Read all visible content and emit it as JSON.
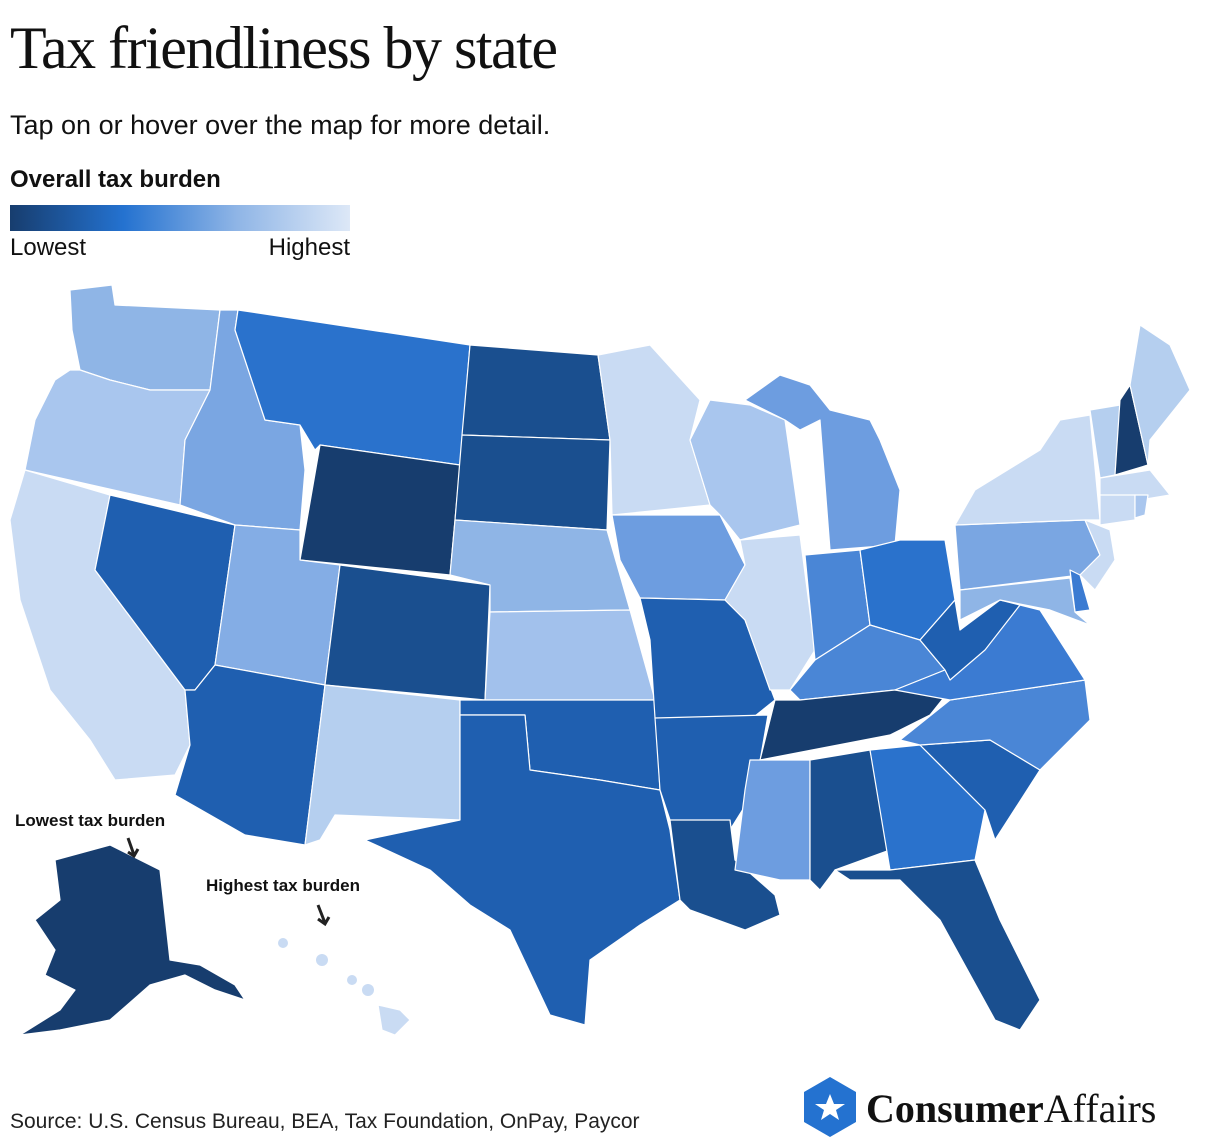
{
  "header": {
    "title": "Tax friendliness by state",
    "subtitle": "Tap on or hover over the map for more detail."
  },
  "legend": {
    "title": "Overall tax burden",
    "low_label": "Lowest",
    "high_label": "Highest",
    "colors": [
      "#173d6e",
      "#2472d0",
      "#8fb5e6",
      "#dde8f7"
    ]
  },
  "annotations": {
    "lowest": "Lowest tax burden",
    "highest": "Highest tax burden"
  },
  "footer": {
    "source": "Source: U.S. Census Bureau, BEA, Tax Foundation, OnPay, Paycor",
    "brand_bold": "Consumer",
    "brand_regular": "Affairs"
  }
}
